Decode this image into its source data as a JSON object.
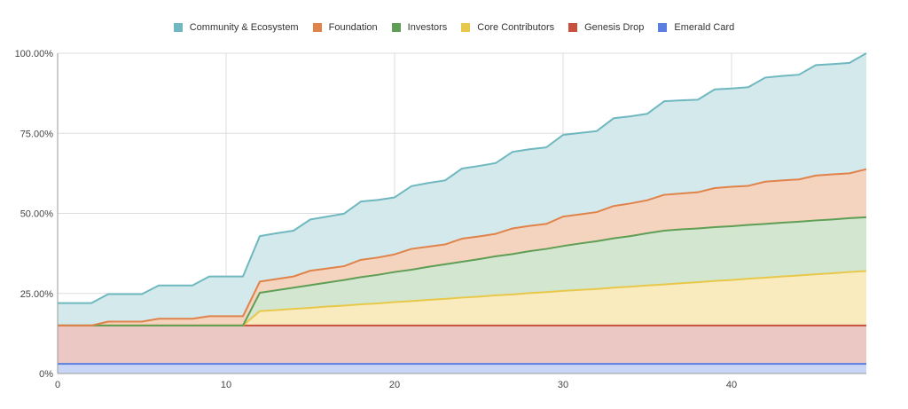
{
  "chart_data": {
    "type": "area",
    "stacked": true,
    "title": "",
    "xlabel": "",
    "ylabel": "",
    "x": [
      0,
      1,
      2,
      3,
      4,
      5,
      6,
      7,
      8,
      9,
      10,
      11,
      12,
      13,
      14,
      15,
      16,
      17,
      18,
      19,
      20,
      21,
      22,
      23,
      24,
      25,
      26,
      27,
      28,
      29,
      30,
      31,
      32,
      33,
      34,
      35,
      36,
      37,
      38,
      39,
      40,
      41,
      42,
      43,
      44,
      45,
      46,
      47,
      48
    ],
    "xlim": [
      0,
      48
    ],
    "ylim": [
      0,
      100
    ],
    "x_ticks": [
      0,
      10,
      20,
      30,
      40
    ],
    "x_tick_labels": [
      "0",
      "10",
      "20",
      "30",
      "40"
    ],
    "y_ticks": [
      0,
      25,
      50,
      75,
      100
    ],
    "y_tick_labels": [
      "0%",
      "25.00%",
      "50.00%",
      "75.00%",
      "100.00%"
    ],
    "grid": true,
    "legend_position": "top",
    "stack_order_bottom_to_top": [
      "Emerald Card",
      "Genesis Drop",
      "Core Contributors",
      "Investors",
      "Foundation",
      "Community & Ecosystem"
    ],
    "series": [
      {
        "name": "Community & Ecosystem",
        "color": "#6fb8c0",
        "fill": "#d3e9ec",
        "values": [
          7.0,
          7.0,
          7.0,
          8.6,
          8.6,
          8.6,
          10.4,
          10.4,
          10.4,
          12.4,
          12.4,
          12.4,
          14.2,
          14.3,
          14.3,
          16.0,
          16.2,
          16.4,
          18.2,
          18.0,
          17.8,
          19.6,
          19.9,
          20.0,
          21.9,
          22.0,
          22.1,
          23.9,
          23.9,
          23.9,
          25.5,
          25.4,
          25.3,
          27.4,
          27.2,
          27.0,
          29.2,
          29.1,
          28.9,
          30.8,
          30.7,
          30.8,
          32.5,
          32.6,
          32.7,
          34.5,
          34.4,
          34.5,
          36.2
        ]
      },
      {
        "name": "Foundation",
        "color": "#e0834a",
        "fill": "#f5d4bf",
        "values": [
          0,
          0,
          0,
          1.2,
          1.2,
          1.2,
          2.1,
          2.1,
          2.1,
          2.9,
          2.9,
          2.9,
          3.5,
          3.5,
          3.5,
          4.5,
          4.4,
          4.3,
          5.4,
          5.4,
          5.5,
          6.5,
          6.3,
          6.2,
          7.2,
          7.1,
          7.0,
          8.0,
          7.9,
          7.8,
          9.2,
          9.1,
          9.1,
          10.1,
          10.2,
          10.3,
          11.2,
          11.2,
          11.3,
          12.2,
          12.3,
          12.2,
          13.2,
          13.2,
          13.2,
          14.0,
          14.1,
          14.0,
          15.0
        ]
      },
      {
        "name": "Investors",
        "color": "#5f9e55",
        "fill": "#d3e6cf",
        "values": [
          0,
          0,
          0,
          0,
          0,
          0,
          0,
          0,
          0,
          0,
          0,
          0,
          5.7,
          6.2,
          6.6,
          7.1,
          7.5,
          8.0,
          8.5,
          8.9,
          9.4,
          9.8,
          10.3,
          10.8,
          11.2,
          11.7,
          12.2,
          12.6,
          13.1,
          13.5,
          14.0,
          14.5,
          14.9,
          15.4,
          15.8,
          16.3,
          16.8,
          16.8,
          16.8,
          16.8,
          16.8,
          16.8,
          16.8,
          16.8,
          16.8,
          16.8,
          16.8,
          16.8,
          16.8
        ]
      },
      {
        "name": "Core Contributors",
        "color": "#e8c84a",
        "fill": "#f9ebbe",
        "values": [
          0,
          0,
          0,
          0,
          0,
          0,
          0,
          0,
          0,
          0,
          0,
          0,
          4.5,
          4.8,
          5.2,
          5.5,
          5.9,
          6.2,
          6.6,
          6.9,
          7.3,
          7.6,
          8.0,
          8.3,
          8.7,
          9.0,
          9.4,
          9.7,
          10.1,
          10.4,
          10.8,
          11.1,
          11.4,
          11.8,
          12.1,
          12.5,
          12.8,
          13.2,
          13.5,
          13.9,
          14.2,
          14.6,
          14.9,
          15.3,
          15.6,
          16.0,
          16.3,
          16.7,
          17.0
        ]
      },
      {
        "name": "Genesis Drop",
        "color": "#c9503c",
        "fill": "#ebc8c4",
        "values": [
          12,
          12,
          12,
          12,
          12,
          12,
          12,
          12,
          12,
          12,
          12,
          12,
          12,
          12,
          12,
          12,
          12,
          12,
          12,
          12,
          12,
          12,
          12,
          12,
          12,
          12,
          12,
          12,
          12,
          12,
          12,
          12,
          12,
          12,
          12,
          12,
          12,
          12,
          12,
          12,
          12,
          12,
          12,
          12,
          12,
          12,
          12,
          12,
          12
        ]
      },
      {
        "name": "Emerald Card",
        "color": "#5b7fe0",
        "fill": "#c9d6f5",
        "values": [
          3,
          3,
          3,
          3,
          3,
          3,
          3,
          3,
          3,
          3,
          3,
          3,
          3,
          3,
          3,
          3,
          3,
          3,
          3,
          3,
          3,
          3,
          3,
          3,
          3,
          3,
          3,
          3,
          3,
          3,
          3,
          3,
          3,
          3,
          3,
          3,
          3,
          3,
          3,
          3,
          3,
          3,
          3,
          3,
          3,
          3,
          3,
          3,
          3
        ]
      }
    ]
  }
}
